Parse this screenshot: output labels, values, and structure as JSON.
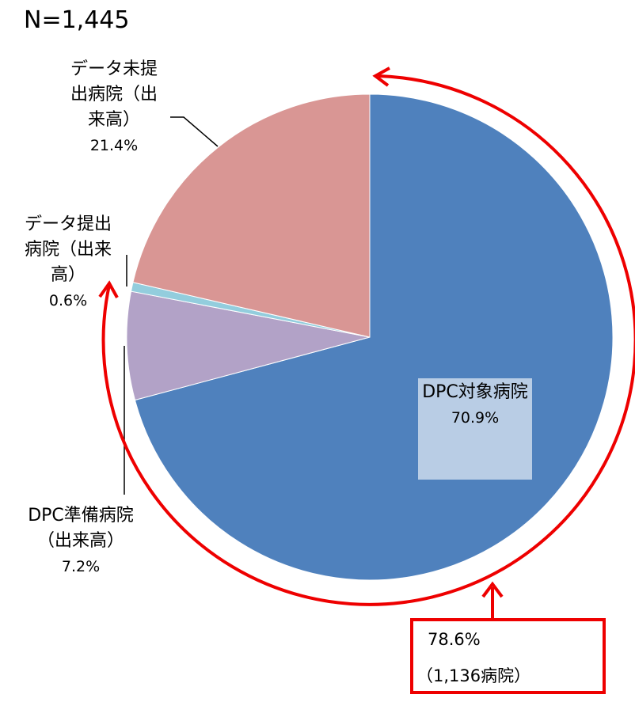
{
  "chart_data": {
    "type": "pie",
    "subtitle": "N=1,445",
    "categories": [
      "DPC対象病院",
      "DPC準備病院（出来高）",
      "データ提出病院（出来高）",
      "データ未提出病院（出来高）"
    ],
    "values": [
      70.9,
      7.2,
      0.6,
      21.4
    ],
    "value_labels": [
      "70.9%",
      "7.2%",
      "0.6%",
      "21.4%"
    ],
    "colors": [
      "#4f81bd",
      "#b2a2c7",
      "#93cddd",
      "#d99694"
    ],
    "annotations": [
      "78.6%",
      "（1,136病院）"
    ]
  }
}
